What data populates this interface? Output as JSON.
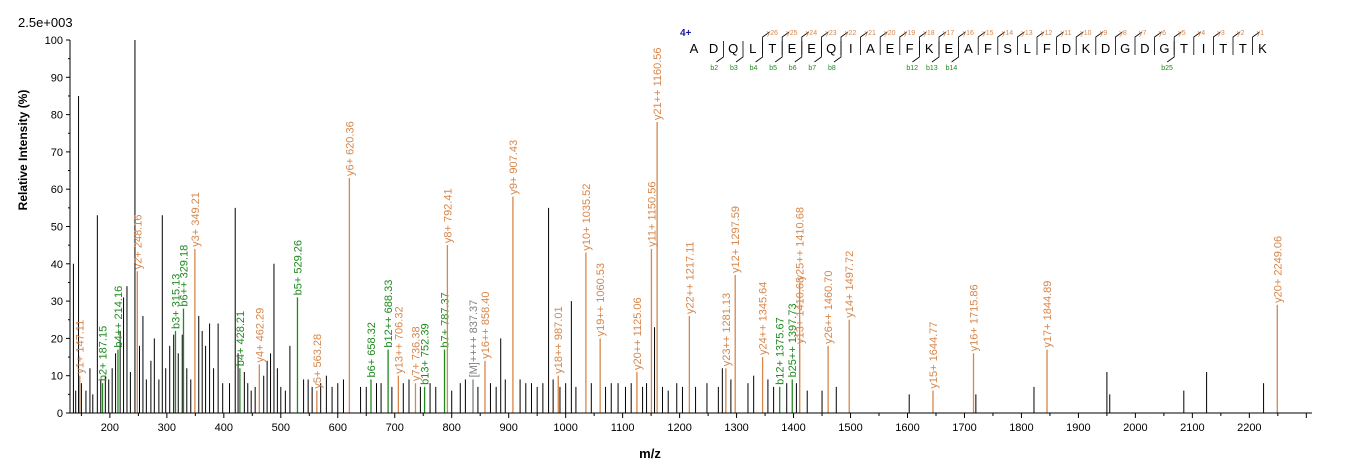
{
  "chart_data": {
    "type": "bar",
    "subtype": "mass-spectrum",
    "intensity_scale_label": "2.5e+003",
    "charge_label": "4+",
    "xlabel": "m/z",
    "ylabel": "Relative Intensity (%)",
    "xlim": [
      130,
      2310
    ],
    "ylim": [
      0,
      100
    ],
    "x_ticks": [
      200,
      300,
      400,
      500,
      600,
      700,
      800,
      900,
      1000,
      1100,
      1200,
      1300,
      1400,
      1500,
      1600,
      1700,
      1800,
      1900,
      2000,
      2100,
      2200
    ],
    "y_ticks": [
      0,
      10,
      20,
      30,
      40,
      50,
      60,
      70,
      80,
      90,
      100
    ],
    "colors": {
      "background_peak": "#000000",
      "y_ion": "#d8864a",
      "b_ion": "#1f8a1f",
      "other": "#808080",
      "charge": "#1a1aa8",
      "axis": "#000000"
    },
    "peptide": [
      "A",
      "D",
      "Q",
      "L",
      "T",
      "E",
      "E",
      "Q",
      "I",
      "A",
      "E",
      "F",
      "K",
      "E",
      "A",
      "F",
      "S",
      "L",
      "F",
      "D",
      "K",
      "D",
      "G",
      "D",
      "G",
      "T",
      "I",
      "T",
      "T",
      "K"
    ],
    "y_ion_labels": [
      {
        "text": "y26",
        "after": 3
      },
      {
        "text": "y25",
        "after": 4
      },
      {
        "text": "y24",
        "after": 5
      },
      {
        "text": "y23",
        "after": 6
      },
      {
        "text": "y22",
        "after": 7
      },
      {
        "text": "y21",
        "after": 8
      },
      {
        "text": "y20",
        "after": 9
      },
      {
        "text": "y19",
        "after": 10
      },
      {
        "text": "y18",
        "after": 11
      },
      {
        "text": "y17",
        "after": 12
      },
      {
        "text": "y16",
        "after": 13
      },
      {
        "text": "y15",
        "after": 14
      },
      {
        "text": "y14",
        "after": 15
      },
      {
        "text": "y13",
        "after": 16
      },
      {
        "text": "y12",
        "after": 17
      },
      {
        "text": "y11",
        "after": 18
      },
      {
        "text": "y10",
        "after": 19
      },
      {
        "text": "y9",
        "after": 20
      },
      {
        "text": "y8",
        "after": 21
      },
      {
        "text": "y7",
        "after": 22
      },
      {
        "text": "y6",
        "after": 23
      },
      {
        "text": "y5",
        "after": 24
      },
      {
        "text": "y4",
        "after": 25
      },
      {
        "text": "y3",
        "after": 26
      },
      {
        "text": "y2",
        "after": 27
      },
      {
        "text": "y1",
        "after": 28
      }
    ],
    "b_ion_labels": [
      {
        "text": "b2",
        "after": 1
      },
      {
        "text": "b3",
        "after": 2
      },
      {
        "text": "b4",
        "after": 3
      },
      {
        "text": "b5",
        "after": 4
      },
      {
        "text": "b6",
        "after": 5
      },
      {
        "text": "b7",
        "after": 6
      },
      {
        "text": "b8",
        "after": 7
      },
      {
        "text": "b12",
        "after": 11
      },
      {
        "text": "b13",
        "after": 12
      },
      {
        "text": "b14",
        "after": 13
      },
      {
        "text": "b25",
        "after": 24
      }
    ],
    "annotated_peaks": [
      {
        "label": "y1+ 147.11",
        "mz": 147.11,
        "intensity": 10,
        "ion": "y"
      },
      {
        "label": "b2+ 187.15",
        "mz": 187.15,
        "intensity": 8,
        "ion": "b"
      },
      {
        "label": "b4++ 214.16",
        "mz": 214.16,
        "intensity": 17,
        "ion": "b"
      },
      {
        "label": "y2+ 248.16",
        "mz": 248.16,
        "intensity": 38,
        "ion": "y"
      },
      {
        "label": "b3+ 315.13",
        "mz": 315.13,
        "intensity": 22,
        "ion": "b"
      },
      {
        "label": "b6++ 329.18",
        "mz": 329.18,
        "intensity": 28,
        "ion": "b"
      },
      {
        "label": "y3+ 349.21",
        "mz": 349.21,
        "intensity": 44,
        "ion": "y"
      },
      {
        "label": "b4+ 428.21",
        "mz": 428.21,
        "intensity": 12,
        "ion": "b"
      },
      {
        "label": "y4+ 462.29",
        "mz": 462.29,
        "intensity": 13,
        "ion": "y"
      },
      {
        "label": "b5+ 529.26",
        "mz": 529.26,
        "intensity": 31,
        "ion": "b"
      },
      {
        "label": "y5+ 563.28",
        "mz": 563.28,
        "intensity": 6,
        "ion": "y"
      },
      {
        "label": "y6+ 620.36",
        "mz": 620.36,
        "intensity": 63,
        "ion": "y"
      },
      {
        "label": "b6+ 658.32",
        "mz": 658.32,
        "intensity": 9,
        "ion": "b"
      },
      {
        "label": "b12++ 688.33",
        "mz": 688.33,
        "intensity": 17,
        "ion": "b"
      },
      {
        "label": "y13++ 706.32",
        "mz": 706.32,
        "intensity": 10,
        "ion": "y"
      },
      {
        "label": "y7+ 736.38",
        "mz": 736.38,
        "intensity": 8,
        "ion": "y"
      },
      {
        "label": "b13+ 752.39",
        "mz": 752.39,
        "intensity": 7,
        "ion": "b"
      },
      {
        "label": "b7+ 787.37",
        "mz": 787.37,
        "intensity": 17,
        "ion": "b"
      },
      {
        "label": "y8+ 792.41",
        "mz": 792.41,
        "intensity": 45,
        "ion": "y"
      },
      {
        "label": "[M]++++ 837.37",
        "mz": 837.37,
        "intensity": 9,
        "ion": "other"
      },
      {
        "label": "y16++ 858.40",
        "mz": 858.4,
        "intensity": 14,
        "ion": "y"
      },
      {
        "label": "y9+ 907.43",
        "mz": 907.43,
        "intensity": 58,
        "ion": "y"
      },
      {
        "label": "y18++ 987.01",
        "mz": 987.01,
        "intensity": 10,
        "ion": "y"
      },
      {
        "label": "y10+ 1035.52",
        "mz": 1035.52,
        "intensity": 43,
        "ion": "y"
      },
      {
        "label": "y19++ 1060.53",
        "mz": 1060.53,
        "intensity": 20,
        "ion": "y"
      },
      {
        "label": "y20++ 1125.06",
        "mz": 1125.06,
        "intensity": 11,
        "ion": "y"
      },
      {
        "label": "y11+ 1150.56",
        "mz": 1150.56,
        "intensity": 44,
        "ion": "y"
      },
      {
        "label": "y21++ 1160.56",
        "mz": 1160.56,
        "intensity": 78,
        "ion": "y"
      },
      {
        "label": "y22++ 1217.11",
        "mz": 1217.11,
        "intensity": 26,
        "ion": "y"
      },
      {
        "label": "y23++ 1281.13",
        "mz": 1281.13,
        "intensity": 12,
        "ion": "y"
      },
      {
        "label": "y12+ 1297.59",
        "mz": 1297.59,
        "intensity": 37,
        "ion": "y"
      },
      {
        "label": "y24++ 1345.64",
        "mz": 1345.64,
        "intensity": 15,
        "ion": "y"
      },
      {
        "label": "b12+ 1375.67",
        "mz": 1375.67,
        "intensity": 7,
        "ion": "b"
      },
      {
        "label": "b25++ 1397.73",
        "mz": 1397.73,
        "intensity": 9,
        "ion": "b"
      },
      {
        "label": "y13+ 1410.68",
        "mz": 1410.68,
        "intensity": 18,
        "ion": "y"
      },
      {
        "label": "y25++ 1410.68",
        "mz": 1410.68,
        "intensity": 35,
        "ion": "y"
      },
      {
        "label": "y26++ 1460.70",
        "mz": 1460.7,
        "intensity": 18,
        "ion": "y"
      },
      {
        "label": "y14+ 1497.72",
        "mz": 1497.72,
        "intensity": 25,
        "ion": "y"
      },
      {
        "label": "y15+ 1644.77",
        "mz": 1644.77,
        "intensity": 6,
        "ion": "y"
      },
      {
        "label": "y16+ 1715.86",
        "mz": 1715.86,
        "intensity": 16,
        "ion": "y"
      },
      {
        "label": "y17+ 1844.89",
        "mz": 1844.89,
        "intensity": 17,
        "ion": "y"
      },
      {
        "label": "y20+ 2249.06",
        "mz": 2249.06,
        "intensity": 29,
        "ion": "y"
      }
    ],
    "background_peaks": [
      [
        136,
        40
      ],
      [
        140,
        6
      ],
      [
        145,
        85
      ],
      [
        150,
        8
      ],
      [
        158,
        6
      ],
      [
        165,
        12
      ],
      [
        170,
        5
      ],
      [
        178,
        53
      ],
      [
        184,
        9
      ],
      [
        192,
        10
      ],
      [
        198,
        9
      ],
      [
        204,
        12
      ],
      [
        210,
        16
      ],
      [
        218,
        22
      ],
      [
        224,
        31
      ],
      [
        230,
        34
      ],
      [
        236,
        11
      ],
      [
        244,
        100
      ],
      [
        252,
        18
      ],
      [
        258,
        26
      ],
      [
        264,
        9
      ],
      [
        272,
        14
      ],
      [
        278,
        20
      ],
      [
        286,
        9
      ],
      [
        292,
        53
      ],
      [
        298,
        12
      ],
      [
        305,
        18
      ],
      [
        312,
        21
      ],
      [
        320,
        16
      ],
      [
        327,
        21
      ],
      [
        335,
        12
      ],
      [
        342,
        9
      ],
      [
        356,
        26
      ],
      [
        362,
        22
      ],
      [
        368,
        18
      ],
      [
        375,
        24
      ],
      [
        382,
        12
      ],
      [
        390,
        24
      ],
      [
        398,
        8
      ],
      [
        410,
        8
      ],
      [
        420,
        55
      ],
      [
        425,
        16
      ],
      [
        436,
        11
      ],
      [
        442,
        8
      ],
      [
        448,
        6
      ],
      [
        455,
        7
      ],
      [
        470,
        10
      ],
      [
        476,
        14
      ],
      [
        482,
        16
      ],
      [
        488,
        40
      ],
      [
        494,
        12
      ],
      [
        500,
        7
      ],
      [
        508,
        6
      ],
      [
        516,
        18
      ],
      [
        540,
        9
      ],
      [
        548,
        9
      ],
      [
        555,
        7
      ],
      [
        570,
        8
      ],
      [
        580,
        10
      ],
      [
        590,
        7
      ],
      [
        600,
        8
      ],
      [
        610,
        9
      ],
      [
        640,
        7
      ],
      [
        650,
        7
      ],
      [
        668,
        8
      ],
      [
        676,
        8
      ],
      [
        695,
        7
      ],
      [
        715,
        8
      ],
      [
        725,
        9
      ],
      [
        745,
        7
      ],
      [
        762,
        8
      ],
      [
        772,
        7
      ],
      [
        800,
        6
      ],
      [
        815,
        8
      ],
      [
        824,
        9
      ],
      [
        846,
        7
      ],
      [
        868,
        8
      ],
      [
        878,
        7
      ],
      [
        886,
        20
      ],
      [
        894,
        9
      ],
      [
        920,
        9
      ],
      [
        930,
        8
      ],
      [
        940,
        8
      ],
      [
        950,
        7
      ],
      [
        960,
        8
      ],
      [
        970,
        55
      ],
      [
        978,
        9
      ],
      [
        990,
        7
      ],
      [
        1000,
        8
      ],
      [
        1010,
        30
      ],
      [
        1018,
        7
      ],
      [
        1045,
        8
      ],
      [
        1070,
        7
      ],
      [
        1080,
        8
      ],
      [
        1092,
        8
      ],
      [
        1105,
        7
      ],
      [
        1115,
        8
      ],
      [
        1135,
        7
      ],
      [
        1142,
        8
      ],
      [
        1156,
        23
      ],
      [
        1170,
        7
      ],
      [
        1180,
        6
      ],
      [
        1195,
        8
      ],
      [
        1205,
        7
      ],
      [
        1228,
        7
      ],
      [
        1248,
        8
      ],
      [
        1268,
        7
      ],
      [
        1275,
        12
      ],
      [
        1290,
        9
      ],
      [
        1320,
        8
      ],
      [
        1330,
        10
      ],
      [
        1355,
        9
      ],
      [
        1365,
        7
      ],
      [
        1388,
        8
      ],
      [
        1405,
        8
      ],
      [
        1424,
        6
      ],
      [
        1450,
        6
      ],
      [
        1475,
        7
      ],
      [
        1603,
        5
      ],
      [
        1720,
        5
      ],
      [
        1822,
        7
      ],
      [
        1950,
        11
      ],
      [
        1955,
        5
      ],
      [
        2085,
        6
      ],
      [
        2125,
        11
      ],
      [
        2225,
        8
      ]
    ]
  }
}
